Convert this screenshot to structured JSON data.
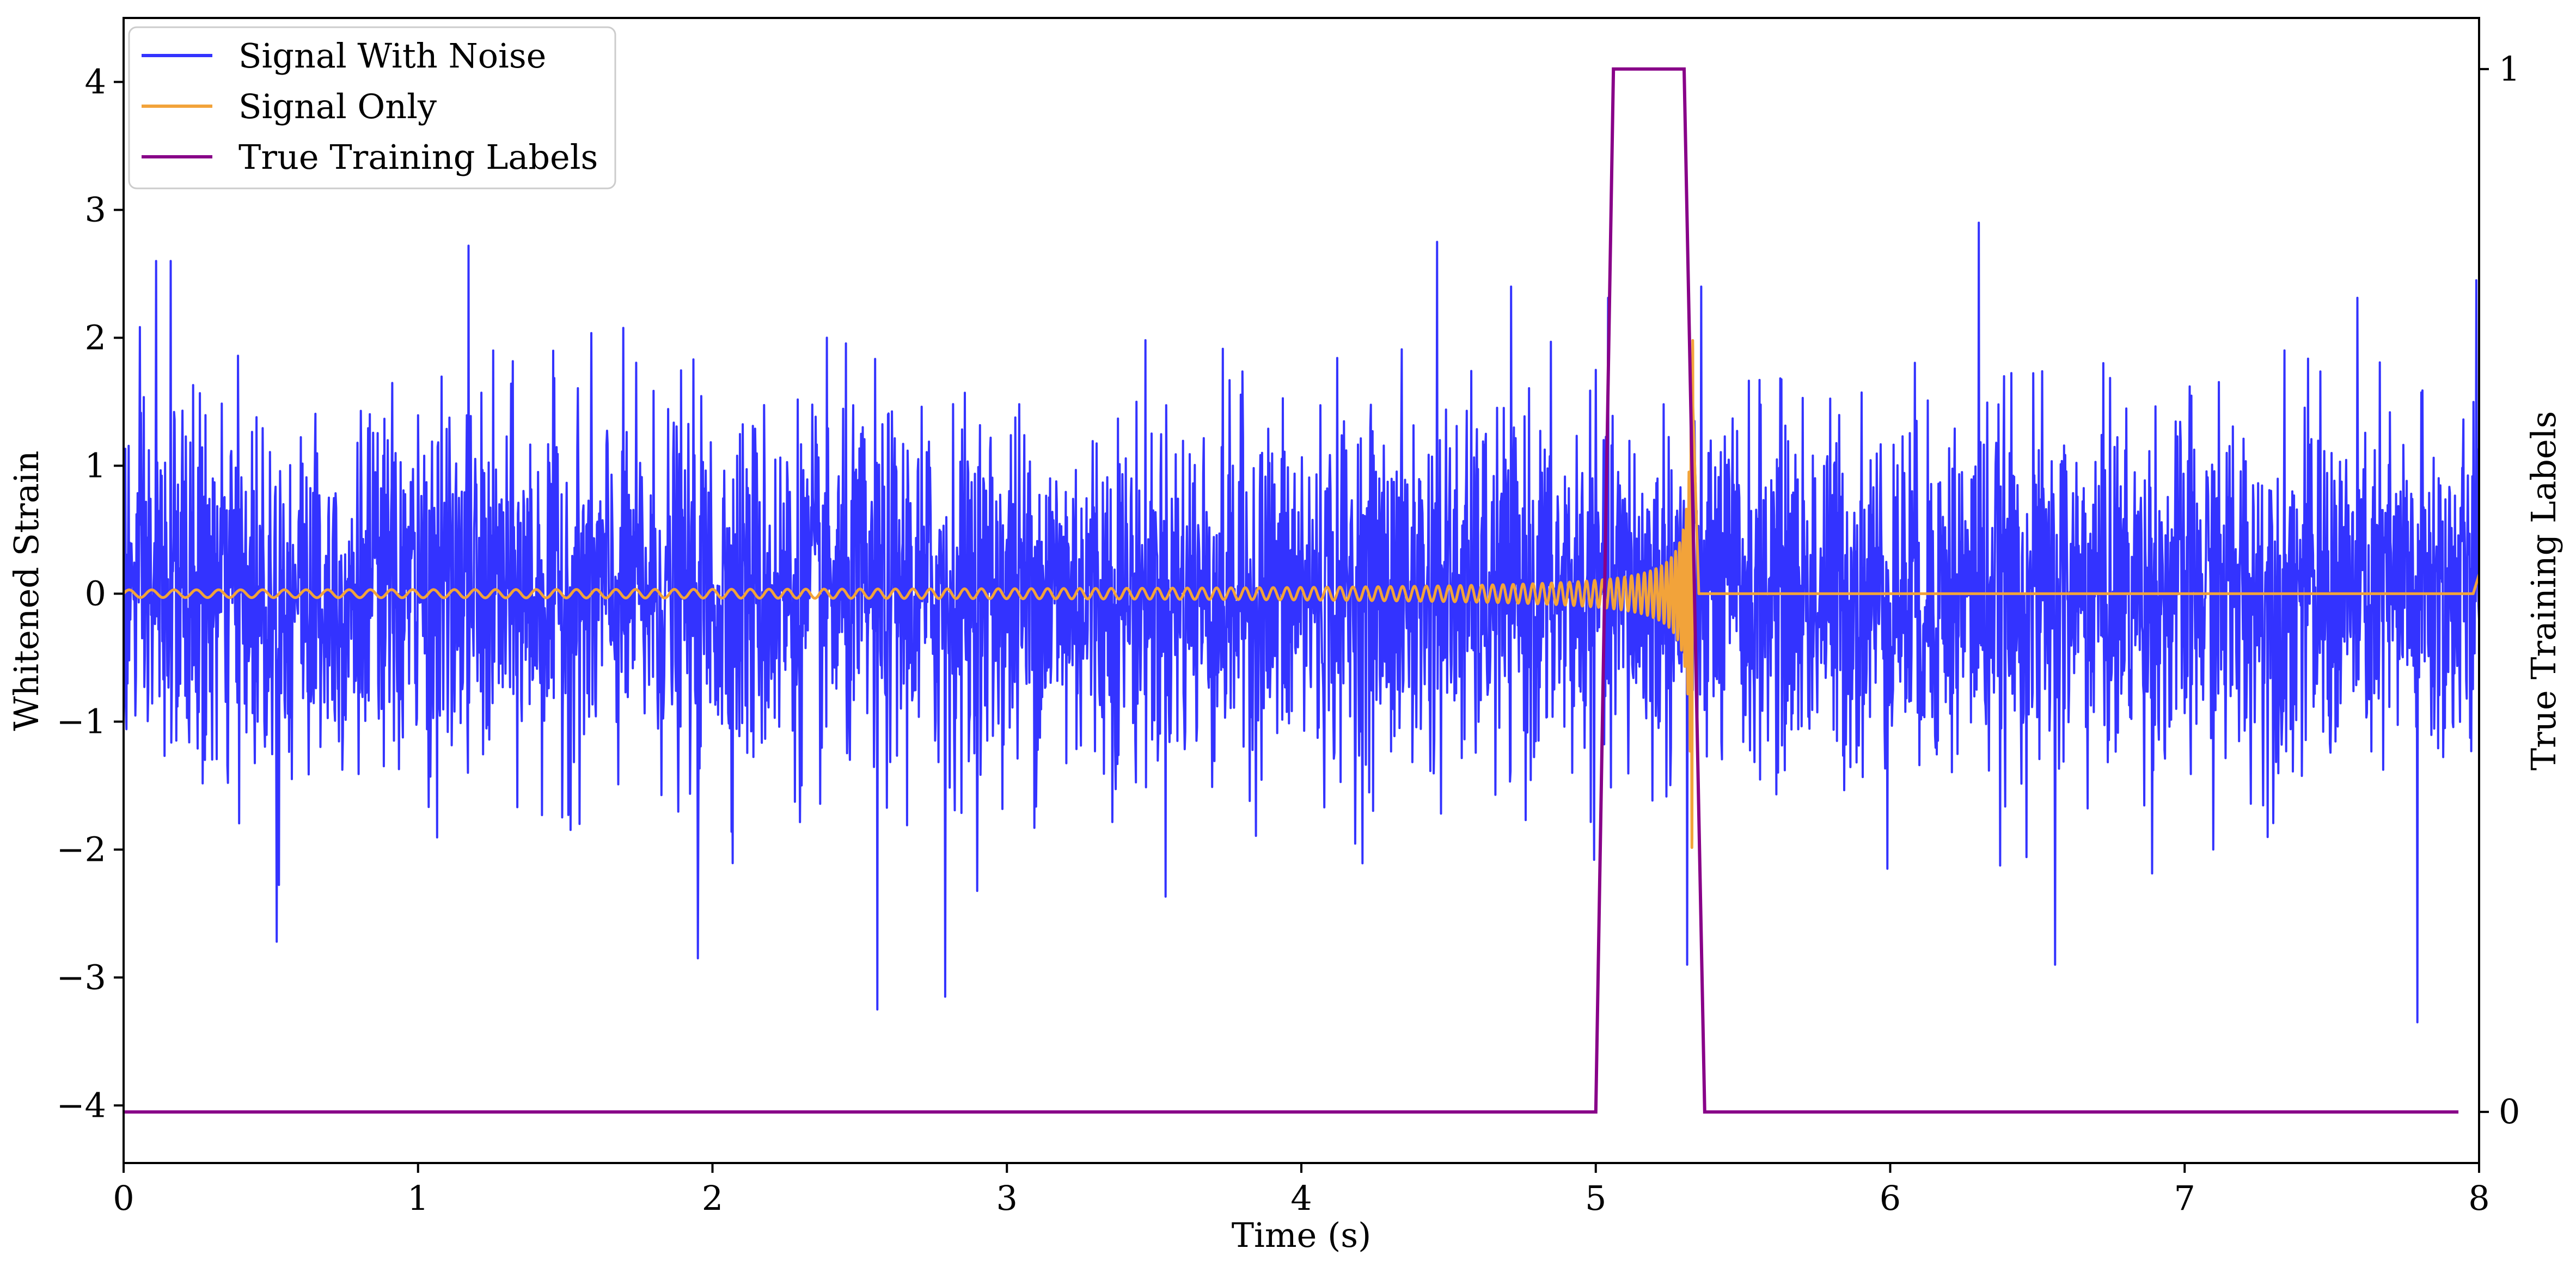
{
  "chart_data": {
    "type": "line",
    "title": "",
    "xlabel": "Time (s)",
    "ylabel": "Whitened Strain",
    "ylabel_right": "True Training Labels",
    "xlim": [
      0,
      8
    ],
    "ylim": [
      -4.45,
      4.5
    ],
    "ylim_right": [
      -0.049,
      1.049
    ],
    "x_ticks": [
      0,
      1,
      2,
      3,
      4,
      5,
      6,
      7,
      8
    ],
    "y_ticks": [
      -4,
      -3,
      -2,
      -1,
      0,
      1,
      2,
      3,
      4
    ],
    "y_tick_labels": [
      "−4",
      "−3",
      "−2",
      "−1",
      "0",
      "1",
      "2",
      "3",
      "4"
    ],
    "y_right_ticks": [
      0,
      1
    ],
    "legend_position": "top-left",
    "legend": [
      "Signal With Noise",
      "Signal Only",
      "True Training Labels"
    ],
    "grid": false,
    "colors": {
      "signal_with_noise": "#3333ff",
      "signal_only": "#f2a33a",
      "true_training_labels": "#880088"
    },
    "series": [
      {
        "name": "Signal With Noise",
        "axis": "left",
        "kind": "noise",
        "sampling_note": "dense noise, typical band about ±1.3",
        "noise_std": 0.7,
        "extreme_peaks": [
          {
            "x": 0.11,
            "y": 2.6
          },
          {
            "x": 0.16,
            "y": 2.6
          },
          {
            "x": 0.52,
            "y": -2.72
          },
          {
            "x": 1.17,
            "y": 2.72
          },
          {
            "x": 1.95,
            "y": -2.85
          },
          {
            "x": 2.56,
            "y": -3.25
          },
          {
            "x": 2.79,
            "y": -3.15
          },
          {
            "x": 4.46,
            "y": 2.75
          },
          {
            "x": 5.31,
            "y": -2.9
          },
          {
            "x": 6.3,
            "y": 2.9
          },
          {
            "x": 6.56,
            "y": -2.9
          },
          {
            "x": 7.79,
            "y": -3.35
          },
          {
            "x": 7.99,
            "y": 2.45
          }
        ]
      },
      {
        "name": "Signal Only",
        "axis": "left",
        "kind": "chirp",
        "start_x": 0,
        "merger_x": 5.33,
        "end_x": 5.35,
        "start_amplitude": 0.03,
        "peak_amplitude": 2.0,
        "start_frequency_hz": 13,
        "after_merger_value": 0,
        "tail_point": {
          "x": 8.0,
          "y": 0.15
        }
      },
      {
        "name": "True Training Labels",
        "axis": "right",
        "kind": "step",
        "x": [
          0,
          5.0,
          5.06,
          5.3,
          5.37,
          7.93
        ],
        "y": [
          0,
          0,
          1,
          1,
          0,
          0
        ]
      }
    ]
  }
}
